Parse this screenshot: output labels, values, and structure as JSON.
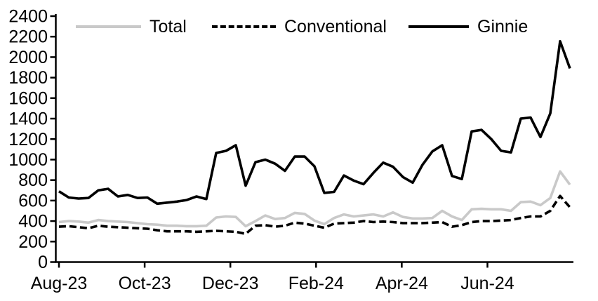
{
  "chart_data": {
    "type": "line",
    "title": "",
    "xlabel": "",
    "ylabel": "",
    "ylim": [
      0,
      2400
    ],
    "y_tick_step": 200,
    "grid": false,
    "legend_position": "top",
    "x_tick_labels": [
      "Aug-23",
      "Oct-23",
      "Dec-23",
      "Feb-24",
      "Apr-24",
      "Jun-24"
    ],
    "x_range_note": "weekly observations, Aug-2023 to Aug-2024",
    "axis_color": "#000000",
    "series": [
      {
        "name": "Total",
        "color": "#c9c9c9",
        "style": "solid",
        "values": [
          390,
          400,
          395,
          385,
          410,
          400,
          395,
          390,
          380,
          370,
          365,
          355,
          355,
          350,
          350,
          355,
          435,
          445,
          440,
          350,
          400,
          455,
          420,
          430,
          480,
          470,
          405,
          370,
          430,
          465,
          445,
          455,
          465,
          445,
          485,
          440,
          425,
          425,
          430,
          500,
          445,
          410,
          515,
          520,
          515,
          515,
          500,
          585,
          590,
          555,
          625,
          885,
          755
        ]
      },
      {
        "name": "Conventional",
        "color": "#000000",
        "style": "dashed",
        "values": [
          345,
          350,
          340,
          330,
          355,
          345,
          340,
          335,
          330,
          325,
          310,
          300,
          300,
          300,
          295,
          300,
          305,
          300,
          295,
          275,
          355,
          360,
          345,
          355,
          385,
          375,
          355,
          335,
          375,
          380,
          385,
          400,
          390,
          395,
          390,
          380,
          380,
          380,
          385,
          390,
          345,
          360,
          390,
          400,
          400,
          405,
          410,
          430,
          445,
          445,
          500,
          645,
          535
        ]
      },
      {
        "name": "Ginnie",
        "color": "#000000",
        "style": "solid",
        "values": [
          690,
          630,
          620,
          625,
          700,
          715,
          640,
          655,
          625,
          630,
          570,
          580,
          590,
          605,
          640,
          615,
          1065,
          1085,
          1140,
          745,
          975,
          1000,
          960,
          890,
          1030,
          1030,
          935,
          675,
          685,
          845,
          795,
          760,
          870,
          970,
          930,
          830,
          775,
          950,
          1080,
          1140,
          840,
          810,
          1275,
          1290,
          1200,
          1085,
          1070,
          1400,
          1410,
          1220,
          1450,
          2155,
          1890
        ]
      }
    ]
  }
}
